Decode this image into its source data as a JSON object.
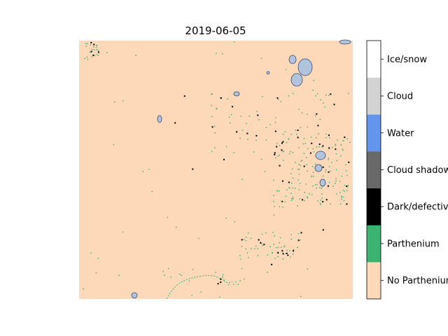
{
  "chart_data": {
    "type": "heatmap",
    "title": "2019-06-05",
    "axes_visible": false,
    "grid": false,
    "legend_placement": "right",
    "background_class": "No Parthenium",
    "colorbar": [
      {
        "label": "No Parthenium",
        "color": "#fdd9b9"
      },
      {
        "label": "Parthenium",
        "color": "#3cb371"
      },
      {
        "label": "Dark/defective",
        "color": "#000000"
      },
      {
        "label": "Cloud shadow",
        "color": "#696969"
      },
      {
        "label": "Water",
        "color": "#6495ed"
      },
      {
        "label": "Cloud",
        "color": "#d3d3d3"
      },
      {
        "label": "Ice/snow",
        "color": "#ffffff"
      }
    ],
    "tick_labels": [
      "No Parthenium",
      "Parthenium",
      "Dark/defective",
      "Cloud shadow",
      "Water",
      "Cloud",
      "Ice/snow"
    ],
    "category_count_order": "bottom-to-top"
  },
  "colors": {
    "cloud_patch": "#b0c4de",
    "cloud_edge": "#3b4a6b",
    "background": "#fdd9b9"
  }
}
